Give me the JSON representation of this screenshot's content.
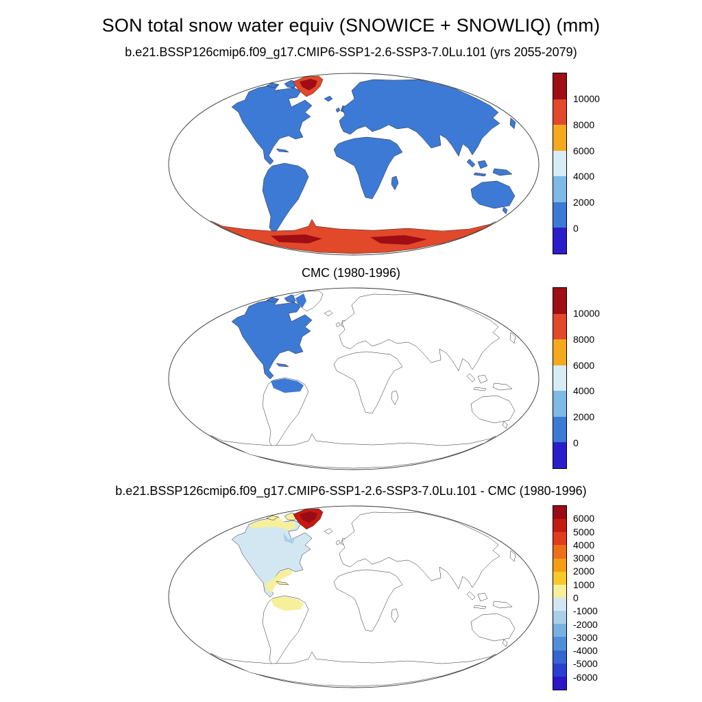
{
  "figure": {
    "title": "SON total snow water equiv (SNOWICE + SNOWLIQ) (mm)",
    "units": "mm",
    "panels": [
      {
        "title": "b.e21.BSSP126cmip6.f09_g17.CMIP6-SSP1-2.6-SSP3-7.0Lu.101 (yrs 2055-2079)",
        "colorbar": {
          "ticks": [
            "10000",
            "8000",
            "6000",
            "4000",
            "2000",
            "0"
          ],
          "colors": [
            "#9f0d15",
            "#e2482a",
            "#f5a91f",
            "#d8ecf6",
            "#7fb9e6",
            "#3d7ad5",
            "#2a1ecb"
          ]
        },
        "map_fills": {
          "na": "#3d7ad5",
          "arct": "#3d7ad5",
          "gl": "#e2482a",
          "glin": "#9f0d15",
          "glw": "transparent",
          "isl": "#3d7ad5",
          "eu": "#3d7ad5",
          "af": "#3d7ad5",
          "sa": "#3d7ad5",
          "san": "transparent",
          "cuba": "#3d7ad5",
          "au": "#3d7ad5",
          "aa": "#e2482a",
          "aap": "#9f0d15",
          "naband": "transparent",
          "namex": "transparent",
          "nahud": "transparent"
        }
      },
      {
        "title": "CMC (1980-1996)",
        "colorbar": {
          "ticks": [
            "10000",
            "8000",
            "6000",
            "4000",
            "2000",
            "0"
          ],
          "colors": [
            "#9f0d15",
            "#e2482a",
            "#f5a91f",
            "#d8ecf6",
            "#7fb9e6",
            "#3d7ad5",
            "#2a1ecb"
          ]
        },
        "map_fills": {
          "na": "#3d7ad5",
          "arct": "#3d7ad5",
          "gl": "#ffffff",
          "glin": "transparent",
          "glw": "#3d7ad5",
          "isl": "#ffffff",
          "eu": "#ffffff",
          "af": "#ffffff",
          "sa": "#ffffff",
          "san": "#3d7ad5",
          "cuba": "#3d7ad5",
          "au": "#ffffff",
          "aa": "#ffffff",
          "aap": "transparent",
          "naband": "transparent",
          "namex": "transparent",
          "nahud": "transparent"
        }
      },
      {
        "title": "b.e21.BSSP126cmip6.f09_g17.CMIP6-SSP1-2.6-SSP3-7.0Lu.101 - CMC (1980-1996)",
        "colorbar": {
          "ticks": [
            "6000",
            "5000",
            "4000",
            "3000",
            "2000",
            "1000",
            "0",
            "-1000",
            "-2000",
            "-3000",
            "-4000",
            "-5000",
            "-6000"
          ],
          "colors": [
            "#9a0c13",
            "#c51a12",
            "#e23c1f",
            "#ee6f1a",
            "#f59d15",
            "#f8c929",
            "#f6ef9b",
            "#d3e7f3",
            "#a9cfe9",
            "#79b1e0",
            "#4f8fd8",
            "#3566cf",
            "#2a3fd0",
            "#2b16c8"
          ]
        },
        "map_fills": {
          "na": "#d3e7f3",
          "arct": "#f6ef9b",
          "gl": "#c51a12",
          "glin": "#9a0c13",
          "glw": "transparent",
          "isl": "#ffffff",
          "eu": "#ffffff",
          "af": "#ffffff",
          "sa": "#ffffff",
          "san": "#f6ef9b",
          "cuba": "#f6ef9b",
          "au": "#ffffff",
          "aa": "#ffffff",
          "aap": "transparent",
          "naband": "#f6ef9b",
          "namex": "#f6ef9b",
          "nahud": "#a9cfe9"
        }
      }
    ]
  },
  "chart_data": [
    {
      "type": "heatmap",
      "subtype": "filled-contour global map (Robinson-style projection)",
      "title": "b.e21.BSSP126cmip6.f09_g17.CMIP6-SSP1-2.6-SSP3-7.0Lu.101 (yrs 2055-2079)",
      "variable": "SON total snow water equiv (SNOWICE + SNOWLIQ)",
      "units": "mm",
      "colorbar": {
        "position": "right",
        "tick_values": [
          10000,
          8000,
          6000,
          4000,
          2000,
          0
        ],
        "segment_colors_top_to_bottom": [
          "#9f0d15",
          "#e2482a",
          "#f5a91f",
          "#d8ecf6",
          "#7fb9e6",
          "#3d7ad5",
          "#2a1ecb"
        ]
      },
      "regions": [
        {
          "region": "all continents except ice sheets",
          "value_range_mm": "0-2000"
        },
        {
          "region": "Greenland interior",
          "value_range_mm": ">10000"
        },
        {
          "region": "Greenland margins",
          "value_range_mm": "8000-10000"
        },
        {
          "region": "Antarctica",
          "value_range_mm": "8000-10000 with interior patches >10000"
        },
        {
          "region": "oceans",
          "value_range_mm": "no data (white)"
        }
      ]
    },
    {
      "type": "heatmap",
      "subtype": "filled-contour global map (Robinson-style projection)",
      "title": "CMC (1980-1996)",
      "variable": "SON total snow water equiv (SNOWICE + SNOWLIQ)",
      "units": "mm",
      "colorbar": {
        "position": "right",
        "tick_values": [
          10000,
          8000,
          6000,
          4000,
          2000,
          0
        ],
        "segment_colors_top_to_bottom": [
          "#9f0d15",
          "#e2482a",
          "#f5a91f",
          "#d8ecf6",
          "#7fb9e6",
          "#3d7ad5",
          "#2a1ecb"
        ]
      },
      "regions": [
        {
          "region": "North America (Alaska, Canada, USA, Mexico)",
          "value_range_mm": "0-2000"
        },
        {
          "region": "western/southern Greenland",
          "value_range_mm": "0-2000"
        },
        {
          "region": "northern South America",
          "value_range_mm": "0-2000"
        },
        {
          "region": "rest of world",
          "value_range_mm": "no data (white)"
        }
      ]
    },
    {
      "type": "heatmap",
      "subtype": "difference map (model minus CMC), Robinson-style projection",
      "title": "b.e21.BSSP126cmip6.f09_g17.CMIP6-SSP1-2.6-SSP3-7.0Lu.101 - CMC (1980-1996)",
      "variable": "difference of SON total snow water equiv",
      "units": "mm",
      "colorbar": {
        "position": "right",
        "tick_values": [
          6000,
          5000,
          4000,
          3000,
          2000,
          1000,
          0,
          -1000,
          -2000,
          -3000,
          -4000,
          -5000,
          -6000
        ],
        "segment_colors_top_to_bottom": [
          "#9a0c13",
          "#c51a12",
          "#e23c1f",
          "#ee6f1a",
          "#f59d15",
          "#f8c929",
          "#f6ef9b",
          "#d3e7f3",
          "#a9cfe9",
          "#79b1e0",
          "#4f8fd8",
          "#3566cf",
          "#2a3fd0",
          "#2b16c8"
        ]
      },
      "regions": [
        {
          "region": "Greenland",
          "value_range_mm": ">6000"
        },
        {
          "region": "most of Canada and USA",
          "value_range_mm": "-1000-0"
        },
        {
          "region": "Hudson Bay / Quebec vicinity",
          "value_range_mm": "-2000 to -1000"
        },
        {
          "region": "Alaska and Canadian Arctic coast/islands",
          "value_range_mm": "0-1000"
        },
        {
          "region": "Mexico and Central America",
          "value_range_mm": "0-1000"
        },
        {
          "region": "northern South America",
          "value_range_mm": "0-1000"
        },
        {
          "region": "rest of world",
          "value_range_mm": "no data (white)"
        }
      ]
    }
  ]
}
